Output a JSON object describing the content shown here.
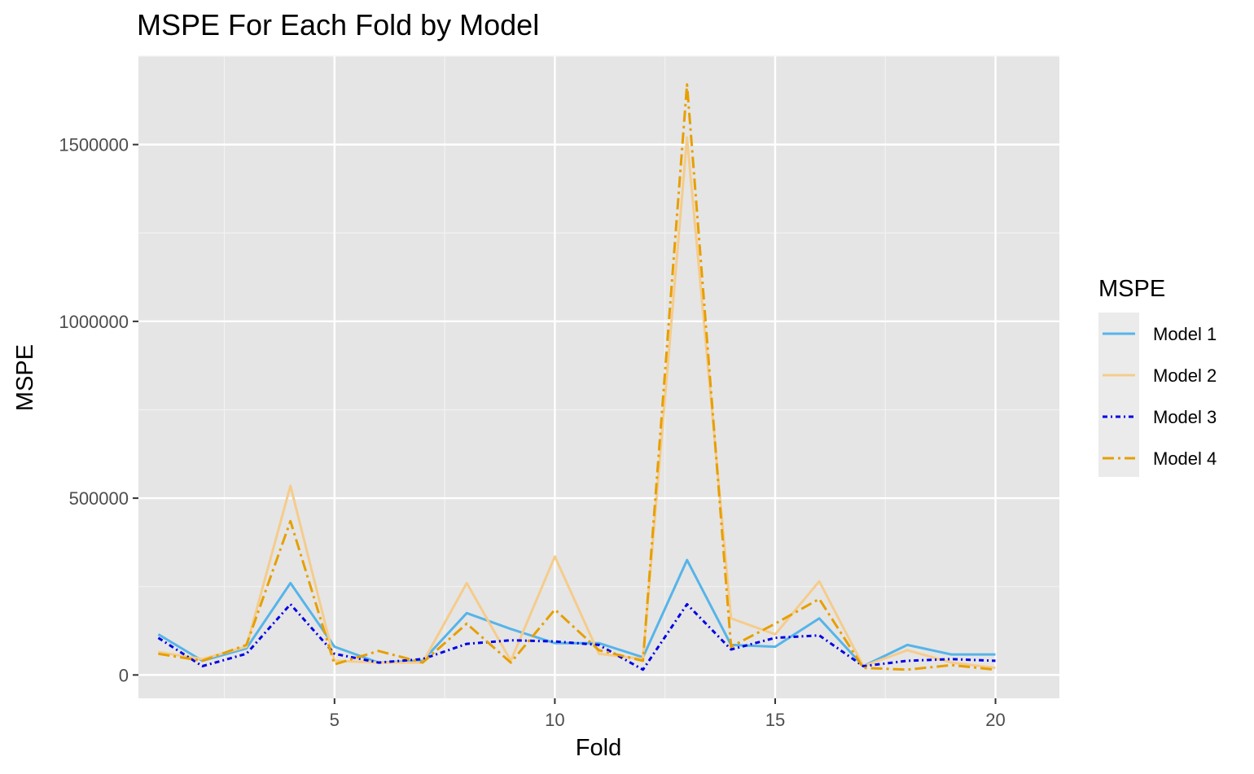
{
  "chart_data": {
    "type": "line",
    "title": "MSPE For Each Fold by Model",
    "xlabel": "Fold",
    "ylabel": "MSPE",
    "xlim": [
      0.55,
      21.45
    ],
    "ylim": [
      -66000,
      1750000
    ],
    "x_ticks": [
      5,
      10,
      15,
      20
    ],
    "x_tick_labels": [
      "5",
      "10",
      "15",
      "20"
    ],
    "y_ticks": [
      0,
      500000,
      1000000,
      1500000
    ],
    "y_tick_labels": [
      "0",
      "500000",
      "1000000",
      "1500000"
    ],
    "grid": true,
    "legend": {
      "title": "MSPE",
      "position": "right"
    },
    "x": [
      1,
      2,
      3,
      4,
      5,
      6,
      7,
      8,
      9,
      10,
      11,
      12,
      13,
      14,
      15,
      16,
      17,
      18,
      19,
      20
    ],
    "series": [
      {
        "name": "Model 1",
        "color": "#56B4E9",
        "dash": "solid",
        "values": [
          115000,
          40000,
          75000,
          260000,
          80000,
          35000,
          40000,
          175000,
          130000,
          90000,
          90000,
          50000,
          325000,
          85000,
          80000,
          160000,
          25000,
          85000,
          58000,
          58000
        ]
      },
      {
        "name": "Model 2",
        "color": "#F5CC8C",
        "dash": "solid",
        "values": [
          65000,
          45000,
          80000,
          535000,
          40000,
          35000,
          35000,
          260000,
          40000,
          335000,
          60000,
          45000,
          1520000,
          160000,
          115000,
          265000,
          25000,
          70000,
          35000,
          20000
        ]
      },
      {
        "name": "Model 3",
        "color": "#0000E6",
        "dash": "6,4,2,4",
        "values": [
          105000,
          25000,
          60000,
          200000,
          60000,
          35000,
          45000,
          88000,
          98000,
          95000,
          85000,
          15000,
          200000,
          72000,
          105000,
          112000,
          25000,
          40000,
          45000,
          40000
        ]
      },
      {
        "name": "Model 4",
        "color": "#E69F00",
        "dash": "14,5,3,5",
        "values": [
          60000,
          40000,
          85000,
          435000,
          30000,
          68000,
          35000,
          145000,
          35000,
          185000,
          70000,
          40000,
          1670000,
          80000,
          145000,
          215000,
          20000,
          15000,
          28000,
          15000
        ]
      }
    ]
  }
}
